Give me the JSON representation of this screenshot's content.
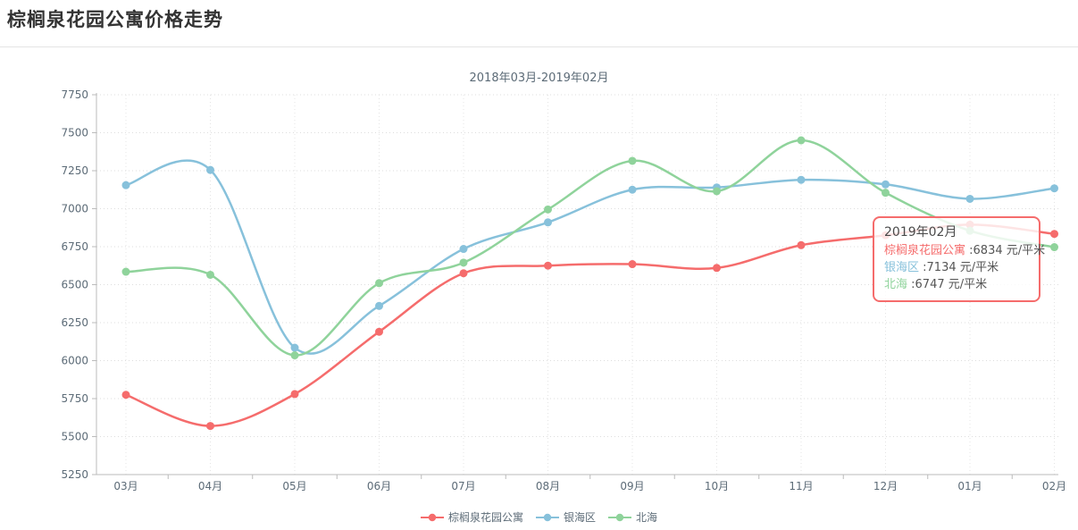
{
  "header": {
    "title": "棕榈泉花园公寓价格走势"
  },
  "chart": {
    "subtitle": "2018年03月-2019年02月"
  },
  "tooltip": {
    "title": "2019年02月",
    "rows": [
      {
        "name": "棕榈泉花园公寓",
        "value_text": " :6834 元/平米"
      },
      {
        "name": "银海区",
        "value_text": " :7134 元/平米"
      },
      {
        "name": "北海",
        "value_text": " :6747 元/平米"
      }
    ]
  },
  "legend": {
    "items": [
      {
        "label": "棕榈泉花园公寓"
      },
      {
        "label": "银海区"
      },
      {
        "label": "北海"
      }
    ]
  },
  "chart_data": {
    "type": "line",
    "title": "棕榈泉花园公寓价格走势",
    "subtitle": "2018年03月-2019年02月",
    "categories": [
      "03月",
      "04月",
      "05月",
      "06月",
      "07月",
      "08月",
      "09月",
      "10月",
      "11月",
      "12月",
      "01月",
      "02月"
    ],
    "series": [
      {
        "name": "棕榈泉花园公寓",
        "color": "#f56c6c",
        "values": [
          5775,
          5570,
          5780,
          6190,
          6575,
          6625,
          6635,
          6610,
          6760,
          6825,
          6895,
          6834
        ]
      },
      {
        "name": "银海区",
        "color": "#87c1db",
        "values": [
          7155,
          7255,
          6085,
          6360,
          6735,
          6910,
          7125,
          7140,
          7190,
          7160,
          7065,
          7134
        ]
      },
      {
        "name": "北海",
        "color": "#8fd39b",
        "values": [
          6585,
          6565,
          6035,
          6510,
          6645,
          6995,
          7315,
          7115,
          7450,
          7105,
          6855,
          6747
        ]
      }
    ],
    "ylim": [
      5250,
      7750
    ],
    "ytick_step": 250,
    "xlabel": "",
    "ylabel": "",
    "grid": true,
    "smooth": true,
    "legend_position": "bottom",
    "highlighted_x": "2019年02月",
    "axis_text_color": "#5c6b77",
    "grid_color": "#dddddd",
    "axis_line_color": "#bbbbbb"
  }
}
